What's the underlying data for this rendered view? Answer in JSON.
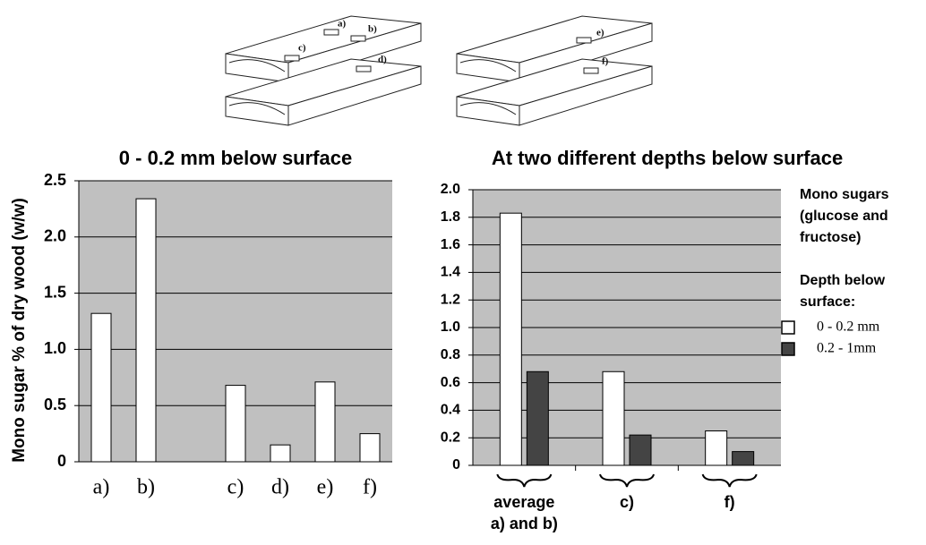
{
  "illustration_labels": [
    "a)",
    "b)",
    "c)",
    "d)",
    "e)",
    "f)"
  ],
  "chart_data": [
    {
      "type": "bar",
      "title": "0 - 0.2 mm below surface",
      "y_label": "Mono sugar % of dry wood (w/w)",
      "categories": [
        "a)",
        "b)",
        null,
        "c)",
        "d)",
        "e)",
        "f)"
      ],
      "values": [
        1.32,
        2.34,
        null,
        0.68,
        0.15,
        0.71,
        0.25
      ],
      "color": "#ffffff",
      "ylim": [
        0,
        2.5
      ],
      "yticks": [
        0,
        0.5,
        {
          "value": 1,
          "label": "1.0"
        },
        1.5,
        {
          "value": 2,
          "label": "2.0"
        },
        2.5
      ],
      "grid": true
    },
    {
      "type": "bar",
      "title": "At two different depths below surface",
      "categories": [
        [
          "average",
          "a) and b)"
        ],
        [
          "c)"
        ],
        [
          "f)"
        ]
      ],
      "series": [
        {
          "name": "0 - 0.2 mm",
          "color": "#ffffff",
          "values": [
            1.83,
            0.68,
            0.25
          ]
        },
        {
          "name": "0.2 - 1mm",
          "color": "#444444",
          "values": [
            0.68,
            0.22,
            0.1
          ]
        }
      ],
      "legend_notes": [
        [
          "Mono sugars",
          "(glucose and",
          "fructose)"
        ],
        [
          "Depth below",
          "surface:"
        ]
      ],
      "ylim": [
        0,
        2.0
      ],
      "yticks": [
        0,
        0.2,
        0.4,
        0.6,
        0.8,
        {
          "value": 1,
          "label": "1.0"
        },
        1.2,
        1.4,
        1.6,
        1.8,
        {
          "value": 2,
          "label": "2.0"
        }
      ],
      "grid": true,
      "legend": "right"
    }
  ]
}
